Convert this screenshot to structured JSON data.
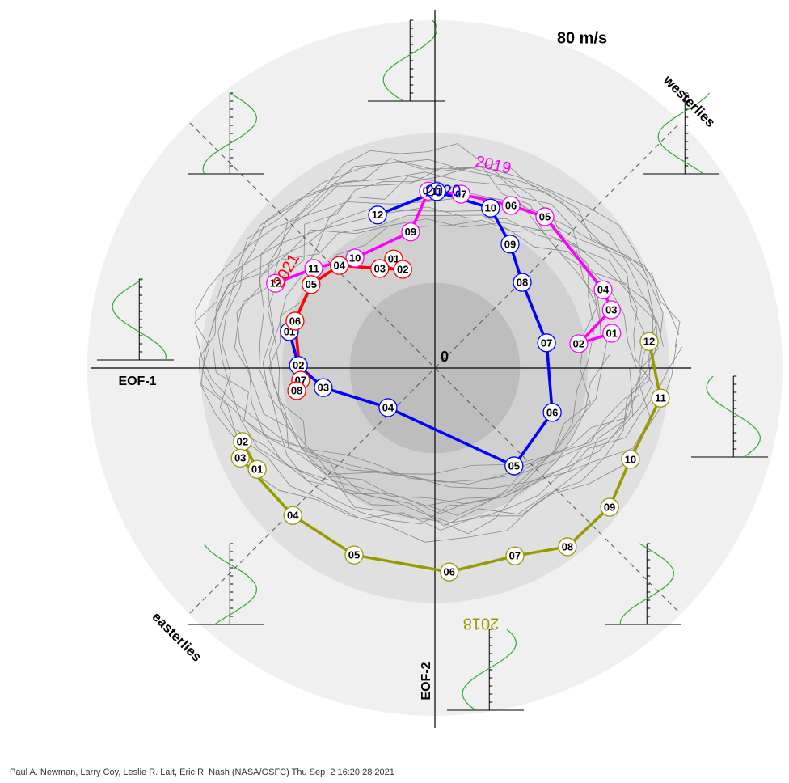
{
  "chart_data": {
    "type": "phase",
    "xlim": [
      -80,
      80
    ],
    "ylim": [
      -80,
      80
    ],
    "ring_label": "80 m/s",
    "origin_label": "0",
    "x_label": "EOF-1",
    "y_label": "EOF-2",
    "upper_right_label": "westerlies",
    "lower_left_label": "easterlies",
    "credit": "Paul A. Newman, Larry Coy, Leslie R. Lait, Eric R. Nash (NASA/GSFC) Thu Sep  2 16:20:28 2021",
    "series": [
      {
        "name": "2018",
        "color": "#999900",
        "labels": [
          "01",
          "02",
          "03",
          "04",
          "05",
          "06",
          "07",
          "08",
          "09",
          "10",
          "11",
          "12"
        ],
        "x": [
          -40.9,
          -44.3,
          -44.8,
          -32.7,
          -18.6,
          3.3,
          18.4,
          30.5,
          40.2,
          45.0,
          51.9,
          49.3
        ],
        "values": [
          -23.3,
          -16.9,
          -20.7,
          -33.9,
          -43.0,
          -46.9,
          -43.2,
          -41.1,
          -32.0,
          -21.0,
          -6.9,
          6.1
        ]
      },
      {
        "name": "2019",
        "color": "#ff00ff",
        "labels": [
          "01",
          "02",
          "03",
          "04",
          "05",
          "06",
          "07",
          "08",
          "09",
          "10",
          "11",
          "12"
        ],
        "x": [
          40.7,
          33.1,
          40.6,
          38.7,
          25.3,
          17.5,
          6.0,
          -1.5,
          -5.6,
          -18.4,
          -27.9,
          -36.7
        ],
        "values": [
          8.0,
          5.6,
          13.4,
          18.0,
          34.8,
          37.4,
          40.0,
          40.7,
          31.3,
          25.3,
          22.9,
          19.5
        ]
      },
      {
        "name": "2020",
        "color": "#0000ff",
        "labels": [
          "01",
          "02",
          "03",
          "04",
          "05",
          "06",
          "07",
          "08",
          "09",
          "10",
          "11",
          "12"
        ],
        "x": [
          -33.5,
          -31.4,
          -25.7,
          -10.8,
          18.2,
          27.0,
          25.7,
          20.1,
          17.3,
          12.8,
          0.4,
          -13.2
        ],
        "values": [
          8.4,
          0.6,
          -4.5,
          -9.1,
          -22.5,
          -10.2,
          5.8,
          19.7,
          28.5,
          36.8,
          40.6,
          35.2
        ]
      },
      {
        "name": "2021",
        "color": "#ff0000",
        "labels": [
          "01",
          "02",
          "03",
          "04",
          "05",
          "06",
          "07",
          "08"
        ],
        "x": [
          -9.5,
          -7.4,
          -12.7,
          -22.0,
          -28.5,
          -32.2,
          -30.9,
          -31.8
        ],
        "values": [
          25.1,
          22.7,
          22.9,
          23.6,
          19.2,
          10.8,
          -2.8,
          -5.2
        ]
      }
    ]
  }
}
